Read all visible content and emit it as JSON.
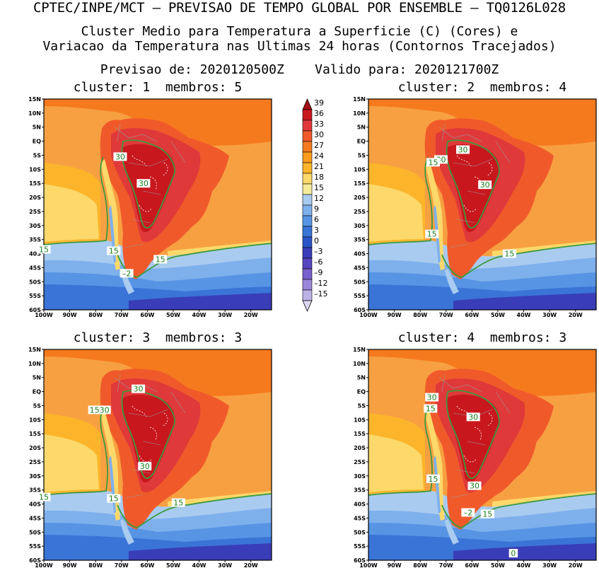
{
  "titles": {
    "line1": "CPTEC/INPE/MCT – PREVISAO DE TEMPO GLOBAL POR ENSEMBLE – TQ0126L028",
    "line2": "Cluster Medio para Temperatura a Superficie (C) (Cores) e",
    "line3": "Variacao da Temperatura nas Ultimas 24 horas (Contornos Tracejados)",
    "line4": "Previsao de: 2020120500Z    Valido para: 2020121700Z"
  },
  "panels": [
    {
      "title": "cluster: 1  membros: 5",
      "labels": [
        {
          "text": "30",
          "lon": -70.5,
          "lat": -5.5
        },
        {
          "text": "30",
          "lon": -61.5,
          "lat": -15
        },
        {
          "text": "15",
          "lon": -100,
          "lat": -38.5
        },
        {
          "text": "15",
          "lon": -73,
          "lat": -39
        },
        {
          "text": "15",
          "lon": -55,
          "lat": -42
        },
        {
          "text": "–2",
          "lon": -68,
          "lat": -47
        }
      ]
    },
    {
      "title": "cluster: 2  membros: 4",
      "labels": [
        {
          "text": "30",
          "lon": -63.5,
          "lat": -3
        },
        {
          "text": "30",
          "lon": -72,
          "lat": -6.5
        },
        {
          "text": "15",
          "lon": -75,
          "lat": -7.5
        },
        {
          "text": "30",
          "lon": -55,
          "lat": -15.5
        },
        {
          "text": "15",
          "lon": -75.5,
          "lat": -33
        },
        {
          "text": "15",
          "lon": -45.5,
          "lat": -40
        }
      ]
    },
    {
      "title": "cluster: 3  membros: 3",
      "labels": [
        {
          "text": "30",
          "lon": -63.5,
          "lat": 1
        },
        {
          "text": "1530",
          "lon": -78.5,
          "lat": -6.5
        },
        {
          "text": "30",
          "lon": -61,
          "lat": -26.5
        },
        {
          "text": "15",
          "lon": -100,
          "lat": -37.5
        },
        {
          "text": "15",
          "lon": -73,
          "lat": -38
        },
        {
          "text": "15",
          "lon": -48,
          "lat": -39.5
        }
      ]
    },
    {
      "title": "cluster: 4  membros: 3",
      "labels": [
        {
          "text": "30",
          "lon": -75.5,
          "lat": -2
        },
        {
          "text": "15",
          "lon": -76,
          "lat": -6
        },
        {
          "text": "30",
          "lon": -59.5,
          "lat": -9
        },
        {
          "text": "15",
          "lon": -75,
          "lat": -31
        },
        {
          "text": "30",
          "lon": -59,
          "lat": -33.5
        },
        {
          "text": "–2",
          "lon": -61.5,
          "lat": -43
        },
        {
          "text": "15",
          "lon": -54,
          "lat": -43.5
        },
        {
          "text": "0",
          "lon": -44,
          "lat": -57.5
        }
      ]
    }
  ],
  "axes": {
    "lat_ticks": [
      "15N",
      "10N",
      "5N",
      "EQ",
      "5S",
      "10S",
      "15S",
      "20S",
      "25S",
      "30S",
      "35S",
      "40S",
      "45S",
      "50S",
      "55S",
      "60S"
    ],
    "lon_ticks": [
      "100W",
      "90W",
      "80W",
      "70W",
      "60W",
      "50W",
      "40W",
      "30W",
      "20W"
    ]
  },
  "colorbar": {
    "ticks": [
      "39",
      "36",
      "33",
      "30",
      "27",
      "24",
      "21",
      "18",
      "15",
      "12",
      "9",
      "6",
      "3",
      "0",
      "–3",
      "–6",
      "–9",
      "–12",
      "–15"
    ],
    "colors": [
      "#a50f15",
      "#c8181e",
      "#e0393a",
      "#f05a2a",
      "#f57a1e",
      "#f99b1c",
      "#fcb52a",
      "#fdd86a",
      "#f6eb9a",
      "#aacbf0",
      "#7eb0ec",
      "#5794e4",
      "#3a74d6",
      "#2a55c8",
      "#3a3db8",
      "#5745c0",
      "#7860cc",
      "#9a86d8",
      "#bcb2e6",
      "#ddd6f3"
    ]
  }
}
